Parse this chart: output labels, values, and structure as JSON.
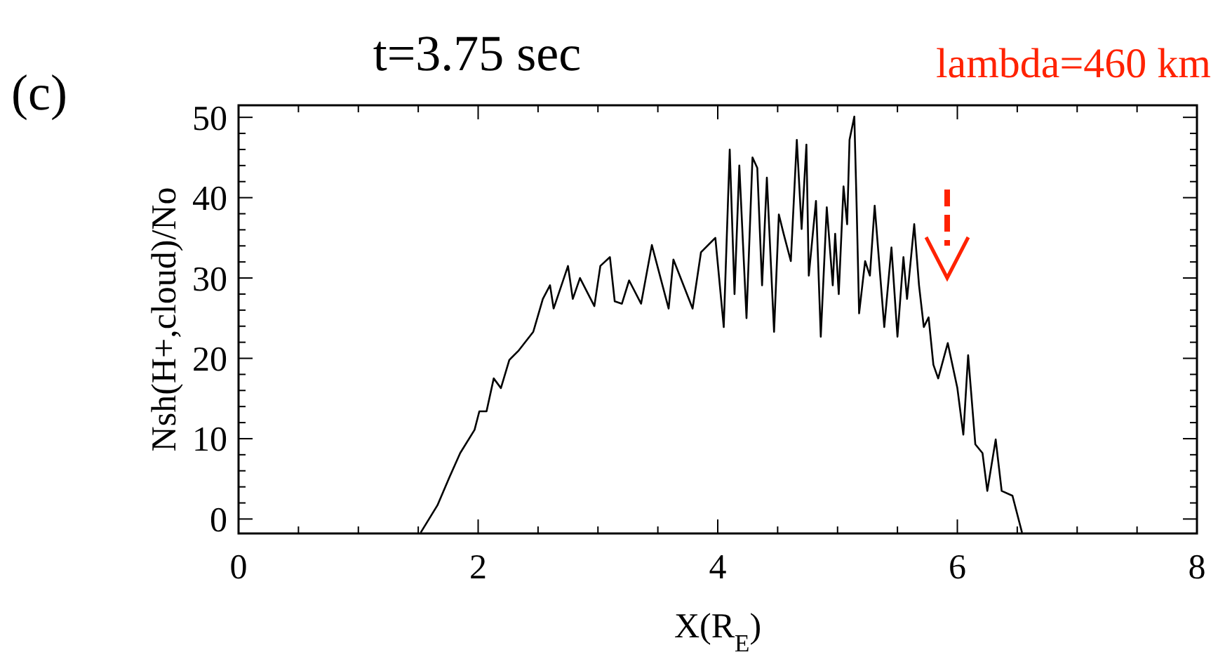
{
  "chart_data": {
    "type": "line",
    "title": "t=3.75 sec",
    "xlabel": "X(R$_{E}$)",
    "ylabel": "Nsh(H+,cloud)/No",
    "annotations": [
      "(c)",
      "lambda=460 km"
    ],
    "xlim": [
      0,
      8
    ],
    "xticks": [
      0,
      2,
      4,
      6,
      8
    ],
    "ylim": [
      -1.8,
      51.5
    ],
    "yticks": [
      0,
      10,
      20,
      30,
      40,
      50
    ],
    "grid": false,
    "marker": "none",
    "line_style": "solid",
    "series": [
      {
        "color": "#000000",
        "x": [
          1.52,
          1.66,
          1.76,
          1.85,
          1.97,
          2.01,
          2.07,
          2.13,
          2.19,
          2.26,
          2.34,
          2.46,
          2.54,
          2.6,
          2.63,
          2.75,
          2.79,
          2.85,
          2.97,
          3.02,
          3.1,
          3.14,
          3.2,
          3.26,
          3.36,
          3.45,
          3.59,
          3.63,
          3.79,
          3.86,
          3.98,
          4.05,
          4.1,
          4.14,
          4.18,
          4.24,
          4.29,
          4.33,
          4.37,
          4.41,
          4.47,
          4.51,
          4.55,
          4.61,
          4.66,
          4.7,
          4.74,
          4.76,
          4.82,
          4.86,
          4.91,
          4.96,
          4.98,
          5.01,
          5.05,
          5.08,
          5.1,
          5.14,
          5.16,
          5.18,
          5.23,
          5.27,
          5.31,
          5.39,
          5.45,
          5.5,
          5.55,
          5.58,
          5.64,
          5.68,
          5.72,
          5.76,
          5.8,
          5.84,
          5.92,
          6.0,
          6.05,
          6.09,
          6.15,
          6.21,
          6.25,
          6.32,
          6.37,
          6.46,
          6.54
        ],
        "values": [
          -1.7,
          1.7,
          5.2,
          8.2,
          11.1,
          13.4,
          13.4,
          17.5,
          16.3,
          19.8,
          21,
          23.3,
          27.4,
          29.1,
          26.2,
          31.5,
          27.4,
          30,
          26.5,
          31.5,
          32.6,
          27.1,
          26.8,
          29.7,
          26.8,
          34.1,
          26.2,
          32.3,
          26.2,
          33.2,
          35,
          23.9,
          46,
          28,
          44,
          25,
          45,
          43.7,
          29.1,
          42.5,
          23.3,
          37.9,
          35.5,
          32.1,
          47.2,
          36.1,
          46.6,
          30.3,
          39.6,
          22.7,
          38.8,
          29.1,
          35.5,
          28,
          41.4,
          36.7,
          47.2,
          50.1,
          38.5,
          25.6,
          32.1,
          30.3,
          39,
          23.9,
          33.8,
          22.7,
          32.6,
          27.4,
          36.7,
          29.1,
          23.9,
          25.1,
          19.2,
          17.5,
          21.9,
          16.3,
          10.5,
          20.4,
          9.3,
          8.2,
          3.5,
          9.9,
          3.5,
          2.9,
          -1.7
        ]
      }
    ]
  }
}
